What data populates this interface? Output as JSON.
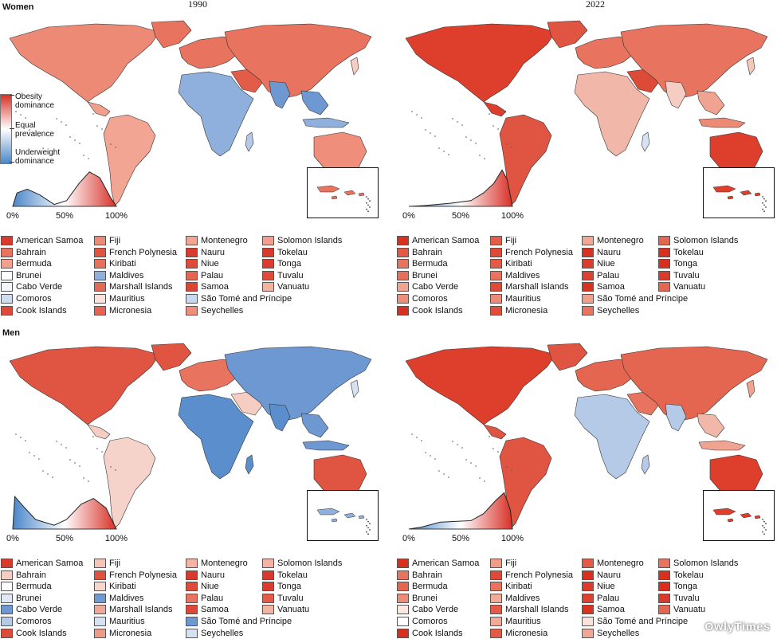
{
  "row_labels": {
    "women": "Women",
    "men": "Men"
  },
  "years": {
    "left": "1990",
    "right": "2022"
  },
  "colorbar": {
    "top": [
      "Obesity",
      "dominance"
    ],
    "mid": [
      "Equal",
      "prevalence"
    ],
    "bottom": [
      "Underweight",
      "dominance"
    ]
  },
  "ticks": [
    "0%",
    "50%",
    "100%"
  ],
  "colors": {
    "obesity": "#d73027",
    "equal": "#ffffff",
    "underweight": "#4a86c8"
  },
  "panels": [
    {
      "key": "w1990",
      "dominance": "mixed",
      "legend": [
        {
          "name": "American Samoa",
          "color": "#d93a2e"
        },
        {
          "name": "Bahrain",
          "color": "#e8735f"
        },
        {
          "name": "Bermuda",
          "color": "#f2a08f"
        },
        {
          "name": "Brunei",
          "color": "#ffffff"
        },
        {
          "name": "Cabo Verde",
          "color": "#f4f6fb"
        },
        {
          "name": "Comoros",
          "color": "#cfdcee"
        },
        {
          "name": "Cook Islands",
          "color": "#de4a3a"
        },
        {
          "name": "Fiji",
          "color": "#ec8a76"
        },
        {
          "name": "French Polynesia",
          "color": "#e0533f"
        },
        {
          "name": "Kiribati",
          "color": "#e8715c"
        },
        {
          "name": "Maldives",
          "color": "#8fb0dc"
        },
        {
          "name": "Marshall Islands",
          "color": "#e26b56"
        },
        {
          "name": "Mauritius",
          "color": "#fae2dc"
        },
        {
          "name": "Micronesia",
          "color": "#e46451"
        },
        {
          "name": "Montenegro",
          "color": "#f1a592"
        },
        {
          "name": "Nauru",
          "color": "#d93a2e"
        },
        {
          "name": "Niue",
          "color": "#df4b39"
        },
        {
          "name": "Palau",
          "color": "#e26651"
        },
        {
          "name": "Samoa",
          "color": "#dc4434"
        },
        {
          "name": "São Tomé and Príncipe",
          "color": "#c8d8ee"
        },
        {
          "name": "Seychelles",
          "color": "#ef8e7b"
        },
        {
          "name": "Solomon Islands",
          "color": "#f0a08d"
        },
        {
          "name": "Tokelau",
          "color": "#d93a2e"
        },
        {
          "name": "Tonga",
          "color": "#da3d30"
        },
        {
          "name": "Tuvalu",
          "color": "#df4b3a"
        },
        {
          "name": "Vanuatu",
          "color": "#f3b3a3"
        }
      ]
    },
    {
      "key": "w2022",
      "dominance": "obesity",
      "legend": [
        {
          "name": "American Samoa",
          "color": "#d7301f"
        },
        {
          "name": "Bahrain",
          "color": "#e35944"
        },
        {
          "name": "Bermuda",
          "color": "#e8735f"
        },
        {
          "name": "Brunei",
          "color": "#e6705b"
        },
        {
          "name": "Cabo Verde",
          "color": "#f0a390"
        },
        {
          "name": "Comoros",
          "color": "#ec907c"
        },
        {
          "name": "Cook Islands",
          "color": "#d7301f"
        },
        {
          "name": "Fiji",
          "color": "#e35c48"
        },
        {
          "name": "French Polynesia",
          "color": "#de4a38"
        },
        {
          "name": "Kiribati",
          "color": "#e35a46"
        },
        {
          "name": "Maldives",
          "color": "#e8735f"
        },
        {
          "name": "Marshall Islands",
          "color": "#de4a38"
        },
        {
          "name": "Mauritius",
          "color": "#ec8b77"
        },
        {
          "name": "Micronesia",
          "color": "#df4d3b"
        },
        {
          "name": "Montenegro",
          "color": "#f1a996"
        },
        {
          "name": "Nauru",
          "color": "#d7301f"
        },
        {
          "name": "Niue",
          "color": "#db3c2b"
        },
        {
          "name": "Palau",
          "color": "#dc4131"
        },
        {
          "name": "Samoa",
          "color": "#d8331f"
        },
        {
          "name": "São Tomé and Príncipe",
          "color": "#efa08c"
        },
        {
          "name": "Seychelles",
          "color": "#e8735f"
        },
        {
          "name": "Solomon Islands",
          "color": "#e46550"
        },
        {
          "name": "Tokelau",
          "color": "#d7301f"
        },
        {
          "name": "Tonga",
          "color": "#d7301f"
        },
        {
          "name": "Tuvalu",
          "color": "#da3a29"
        },
        {
          "name": "Vanuatu",
          "color": "#e46550"
        }
      ]
    },
    {
      "key": "m1990",
      "dominance": "mixed",
      "legend": [
        {
          "name": "American Samoa",
          "color": "#d93a2e"
        },
        {
          "name": "Bahrain",
          "color": "#f6cdc2"
        },
        {
          "name": "Bermuda",
          "color": "#ffffff"
        },
        {
          "name": "Brunei",
          "color": "#dfe8f4"
        },
        {
          "name": "Cabo Verde",
          "color": "#6d98d1"
        },
        {
          "name": "Comoros",
          "color": "#b5cae7"
        },
        {
          "name": "Cook Islands",
          "color": "#de4a3a"
        },
        {
          "name": "Fiji",
          "color": "#f4c4b7"
        },
        {
          "name": "French Polynesia",
          "color": "#e0533f"
        },
        {
          "name": "Kiribati",
          "color": "#f7d6cd"
        },
        {
          "name": "Maldives",
          "color": "#6e99d1"
        },
        {
          "name": "Marshall Islands",
          "color": "#f0a998"
        },
        {
          "name": "Mauritius",
          "color": "#d6e2f2"
        },
        {
          "name": "Micronesia",
          "color": "#ee9c89"
        },
        {
          "name": "Montenegro",
          "color": "#f3b4a4"
        },
        {
          "name": "Nauru",
          "color": "#d93a2e"
        },
        {
          "name": "Niue",
          "color": "#df4b39"
        },
        {
          "name": "Palau",
          "color": "#e8735f"
        },
        {
          "name": "Samoa",
          "color": "#de4838"
        },
        {
          "name": "São Tomé and Príncipe",
          "color": "#6d98d1"
        },
        {
          "name": "Seychelles",
          "color": "#d6e2f2"
        },
        {
          "name": "Solomon Islands",
          "color": "#f3b4a4"
        },
        {
          "name": "Tokelau",
          "color": "#d93a2e"
        },
        {
          "name": "Tonga",
          "color": "#da3d30"
        },
        {
          "name": "Tuvalu",
          "color": "#e35c49"
        },
        {
          "name": "Vanuatu",
          "color": "#f3b4a4"
        }
      ]
    },
    {
      "key": "m2022",
      "dominance": "obesity",
      "legend": [
        {
          "name": "American Samoa",
          "color": "#d7301f"
        },
        {
          "name": "Bahrain",
          "color": "#e8735f"
        },
        {
          "name": "Bermuda",
          "color": "#e46550"
        },
        {
          "name": "Brunei",
          "color": "#ec8c78"
        },
        {
          "name": "Cabo Verde",
          "color": "#fbe6e0"
        },
        {
          "name": "Comoros",
          "color": "#ffffff"
        },
        {
          "name": "Cook Islands",
          "color": "#d7301f"
        },
        {
          "name": "Fiji",
          "color": "#ef9c88"
        },
        {
          "name": "French Polynesia",
          "color": "#de4a38"
        },
        {
          "name": "Kiribati",
          "color": "#e8735f"
        },
        {
          "name": "Maldives",
          "color": "#f1ab99"
        },
        {
          "name": "Marshall Islands",
          "color": "#e35a46"
        },
        {
          "name": "Mauritius",
          "color": "#f1ab99"
        },
        {
          "name": "Micronesia",
          "color": "#e35a46"
        },
        {
          "name": "Montenegro",
          "color": "#e35a46"
        },
        {
          "name": "Nauru",
          "color": "#d7301f"
        },
        {
          "name": "Niue",
          "color": "#db3c2b"
        },
        {
          "name": "Palau",
          "color": "#dc4131"
        },
        {
          "name": "Samoa",
          "color": "#d8331f"
        },
        {
          "name": "São Tomé and Príncipe",
          "color": "#fbe2db"
        },
        {
          "name": "Seychelles",
          "color": "#f0a896"
        },
        {
          "name": "Solomon Islands",
          "color": "#e8735f"
        },
        {
          "name": "Tokelau",
          "color": "#d7301f"
        },
        {
          "name": "Tonga",
          "color": "#d7301f"
        },
        {
          "name": "Tuvalu",
          "color": "#da3a29"
        },
        {
          "name": "Vanuatu",
          "color": "#e46550"
        }
      ]
    }
  ],
  "watermark": "OwlyTimes"
}
